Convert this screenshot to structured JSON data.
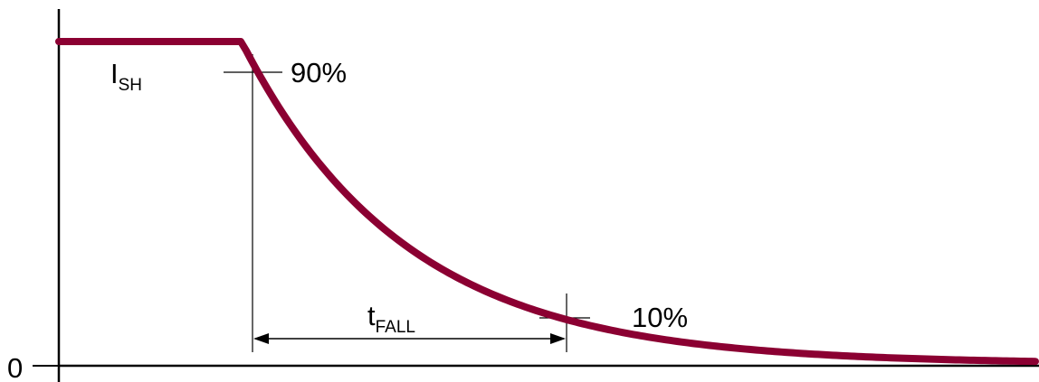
{
  "labels": {
    "zero": "0",
    "ish_main": "I",
    "ish_sub": "SH",
    "pct_90": "90%",
    "pct_10": "10%",
    "tfall_main": "t",
    "tfall_sub": "FALL"
  },
  "colors": {
    "curve": "#8b0032",
    "axes": "#000000",
    "background": "#ffffff"
  }
}
